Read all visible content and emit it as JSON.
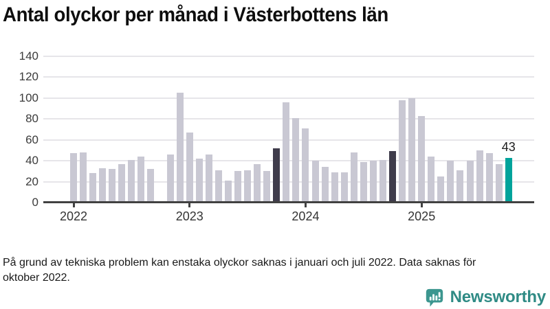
{
  "title": "Antal olyckor per månad i Västerbottens län",
  "footnote": "På grund av tekniska problem kan enstaka olyckor saknas i januari och juli 2022. Data saknas för oktober 2022.",
  "branding": {
    "name": "Newsworthy",
    "icon": "newsworthy-speech-bubble-bar-chart-icon"
  },
  "colors": {
    "bar_default": "#c9c8d3",
    "bar_highlight_dark": "#3f3c4b",
    "bar_current": "#00a39b",
    "gridline": "#e6e5e9",
    "axis": "#414141",
    "logo_teal": "#2f8b85"
  },
  "chart_data": {
    "type": "bar",
    "title": "Antal olyckor per månad i Västerbottens län",
    "xlabel": "",
    "ylabel": "",
    "ylim": [
      0,
      140
    ],
    "yticks": [
      0,
      20,
      40,
      60,
      80,
      100,
      120,
      140
    ],
    "grid": true,
    "legend": false,
    "x_year_labels": [
      "2022",
      "2023",
      "2024",
      "2025"
    ],
    "missing_months": [
      "2022-10"
    ],
    "highlight_months_dark": [
      "2023-10",
      "2024-10"
    ],
    "highlight_month_current": "2025-10",
    "annotation": {
      "month": "2025-10",
      "label": "43"
    },
    "series": [
      {
        "name": "Antal olyckor",
        "x": [
          "2022-01",
          "2022-02",
          "2022-03",
          "2022-04",
          "2022-05",
          "2022-06",
          "2022-07",
          "2022-08",
          "2022-09",
          "2022-10",
          "2022-11",
          "2022-12",
          "2023-01",
          "2023-02",
          "2023-03",
          "2023-04",
          "2023-05",
          "2023-06",
          "2023-07",
          "2023-08",
          "2023-09",
          "2023-10",
          "2023-11",
          "2023-12",
          "2024-01",
          "2024-02",
          "2024-03",
          "2024-04",
          "2024-05",
          "2024-06",
          "2024-07",
          "2024-08",
          "2024-09",
          "2024-10",
          "2024-11",
          "2024-12",
          "2025-01",
          "2025-02",
          "2025-03",
          "2025-04",
          "2025-05",
          "2025-06",
          "2025-07",
          "2025-08",
          "2025-09",
          "2025-10"
        ],
        "values": [
          47,
          48,
          28,
          33,
          32,
          37,
          41,
          44,
          32,
          null,
          46,
          105,
          67,
          42,
          46,
          31,
          21,
          30,
          31,
          37,
          30,
          52,
          96,
          81,
          71,
          40,
          34,
          29,
          29,
          48,
          39,
          40,
          41,
          49,
          98,
          100,
          83,
          44,
          25,
          40,
          31,
          40,
          50,
          47,
          37,
          43
        ]
      }
    ]
  }
}
